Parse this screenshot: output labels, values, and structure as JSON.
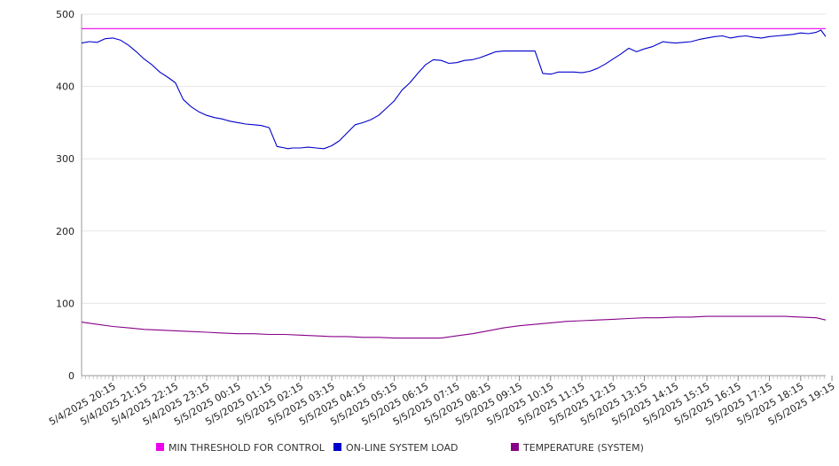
{
  "chart_data": {
    "type": "line",
    "title": "",
    "xlabel": "",
    "ylabel": "",
    "ylim": [
      0,
      500
    ],
    "y_ticks": [
      0,
      100,
      200,
      300,
      400,
      500
    ],
    "grid": "horizontal",
    "legend_position": "bottom",
    "x_tick_labels": [
      "5/4/2025 20:15",
      "5/4/2025 21:15",
      "5/4/2025 22:15",
      "5/4/2025 23:15",
      "5/5/2025 00:15",
      "5/5/2025 01:15",
      "5/5/2025 02:15",
      "5/5/2025 03:15",
      "5/5/2025 04:15",
      "5/5/2025 05:15",
      "5/5/2025 06:15",
      "5/5/2025 07:15",
      "5/5/2025 08:15",
      "5/5/2025 09:15",
      "5/5/2025 10:15",
      "5/5/2025 11:15",
      "5/5/2025 12:15",
      "5/5/2025 13:15",
      "5/5/2025 14:15",
      "5/5/2025 15:15",
      "5/5/2025 16:15",
      "5/5/2025 17:15",
      "5/5/2025 18:15",
      "5/5/2025 19:15"
    ],
    "x_domain": [
      -1.0,
      22.8
    ],
    "series": [
      {
        "name": "MIN THRESHOLD FOR CONTROL",
        "color": "#ee00ee",
        "x": [
          -1.0,
          22.8
        ],
        "values": [
          480,
          480
        ]
      },
      {
        "name": "ON-LINE SYSTEM LOAD",
        "color": "#0000cc",
        "x": [
          -1.0,
          -0.75,
          -0.5,
          -0.25,
          0.0,
          0.25,
          0.5,
          0.75,
          1.0,
          1.25,
          1.5,
          1.75,
          2.0,
          2.25,
          2.5,
          2.75,
          3.0,
          3.25,
          3.5,
          3.75,
          4.0,
          4.25,
          4.5,
          4.75,
          5.0,
          5.25,
          5.5,
          5.6,
          5.75,
          6.0,
          6.25,
          6.5,
          6.75,
          7.0,
          7.25,
          7.5,
          7.75,
          8.0,
          8.25,
          8.5,
          8.75,
          9.0,
          9.25,
          9.5,
          9.75,
          10.0,
          10.25,
          10.5,
          10.75,
          11.0,
          11.25,
          11.5,
          11.75,
          12.0,
          12.25,
          12.5,
          12.75,
          13.0,
          13.25,
          13.5,
          13.75,
          14.0,
          14.1,
          14.25,
          14.5,
          14.75,
          15.0,
          15.25,
          15.5,
          15.75,
          16.0,
          16.25,
          16.5,
          16.75,
          17.0,
          17.25,
          17.5,
          17.6,
          17.75,
          18.0,
          18.25,
          18.5,
          18.75,
          19.0,
          19.25,
          19.5,
          19.75,
          20.0,
          20.25,
          20.5,
          20.75,
          21.0,
          21.25,
          21.5,
          21.75,
          22.0,
          22.25,
          22.5,
          22.65,
          22.8
        ],
        "values": [
          460,
          462,
          461,
          466,
          467,
          464,
          457,
          448,
          438,
          430,
          420,
          413,
          405,
          382,
          372,
          365,
          360,
          357,
          355,
          352,
          350,
          348,
          347,
          346,
          343,
          317,
          315,
          314,
          315,
          315,
          316,
          315,
          314,
          318,
          325,
          336,
          347,
          350,
          354,
          360,
          370,
          380,
          395,
          405,
          418,
          430,
          437,
          436,
          432,
          433,
          436,
          437,
          440,
          444,
          448,
          449,
          449,
          449,
          449,
          449,
          418,
          417,
          418,
          420,
          420,
          420,
          419,
          421,
          425,
          431,
          438,
          445,
          453,
          448,
          452,
          455,
          460,
          462,
          461,
          460,
          461,
          462,
          465,
          467,
          469,
          470,
          467,
          469,
          470,
          468,
          467,
          469,
          470,
          471,
          472,
          474,
          473,
          475,
          478,
          469
        ]
      },
      {
        "name": "TEMPERATURE (SYSTEM)",
        "color": "#880088",
        "x": [
          -1.0,
          -0.5,
          0.0,
          0.5,
          1.0,
          1.5,
          2.0,
          2.5,
          3.0,
          3.5,
          4.0,
          4.5,
          5.0,
          5.5,
          6.0,
          6.5,
          7.0,
          7.5,
          8.0,
          8.5,
          9.0,
          9.5,
          10.0,
          10.5,
          11.0,
          11.5,
          12.0,
          12.5,
          13.0,
          13.5,
          14.0,
          14.5,
          15.0,
          15.5,
          16.0,
          16.5,
          17.0,
          17.5,
          18.0,
          18.5,
          19.0,
          19.5,
          20.0,
          20.5,
          21.0,
          21.5,
          22.0,
          22.5,
          22.8
        ],
        "values": [
          74,
          71,
          68,
          66,
          64,
          63,
          62,
          61,
          60,
          59,
          58,
          58,
          57,
          57,
          56,
          55,
          54,
          54,
          53,
          53,
          52,
          52,
          52,
          52,
          55,
          58,
          62,
          66,
          69,
          71,
          73,
          75,
          76,
          77,
          78,
          79,
          80,
          80,
          81,
          81,
          82,
          82,
          82,
          82,
          82,
          82,
          81,
          80,
          77
        ]
      }
    ]
  }
}
